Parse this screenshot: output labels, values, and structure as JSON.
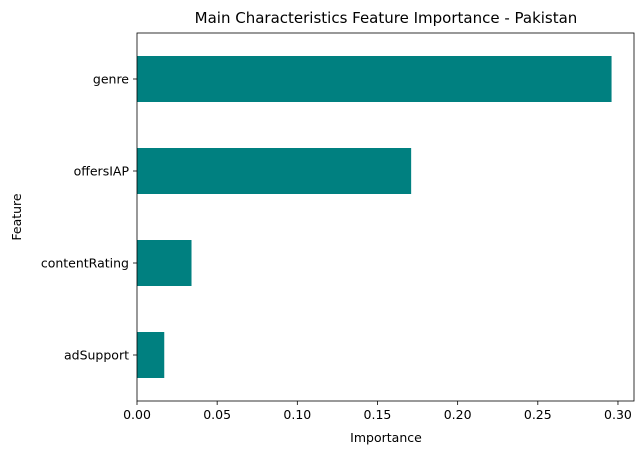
{
  "chart_data": {
    "type": "bar",
    "orientation": "horizontal",
    "title": "Main Characteristics Feature Importance - Pakistan",
    "xlabel": "Importance",
    "ylabel": "Feature",
    "categories": [
      "genre",
      "offersIAP",
      "contentRating",
      "adSupport"
    ],
    "values": [
      0.296,
      0.171,
      0.034,
      0.017
    ],
    "xlim": [
      0,
      0.31
    ],
    "xticks": [
      0.0,
      0.05,
      0.1,
      0.15,
      0.2,
      0.25,
      0.3
    ],
    "xtick_labels": [
      "0.00",
      "0.05",
      "0.10",
      "0.15",
      "0.20",
      "0.25",
      "0.30"
    ],
    "grid": false,
    "bar_color": "#008080"
  }
}
